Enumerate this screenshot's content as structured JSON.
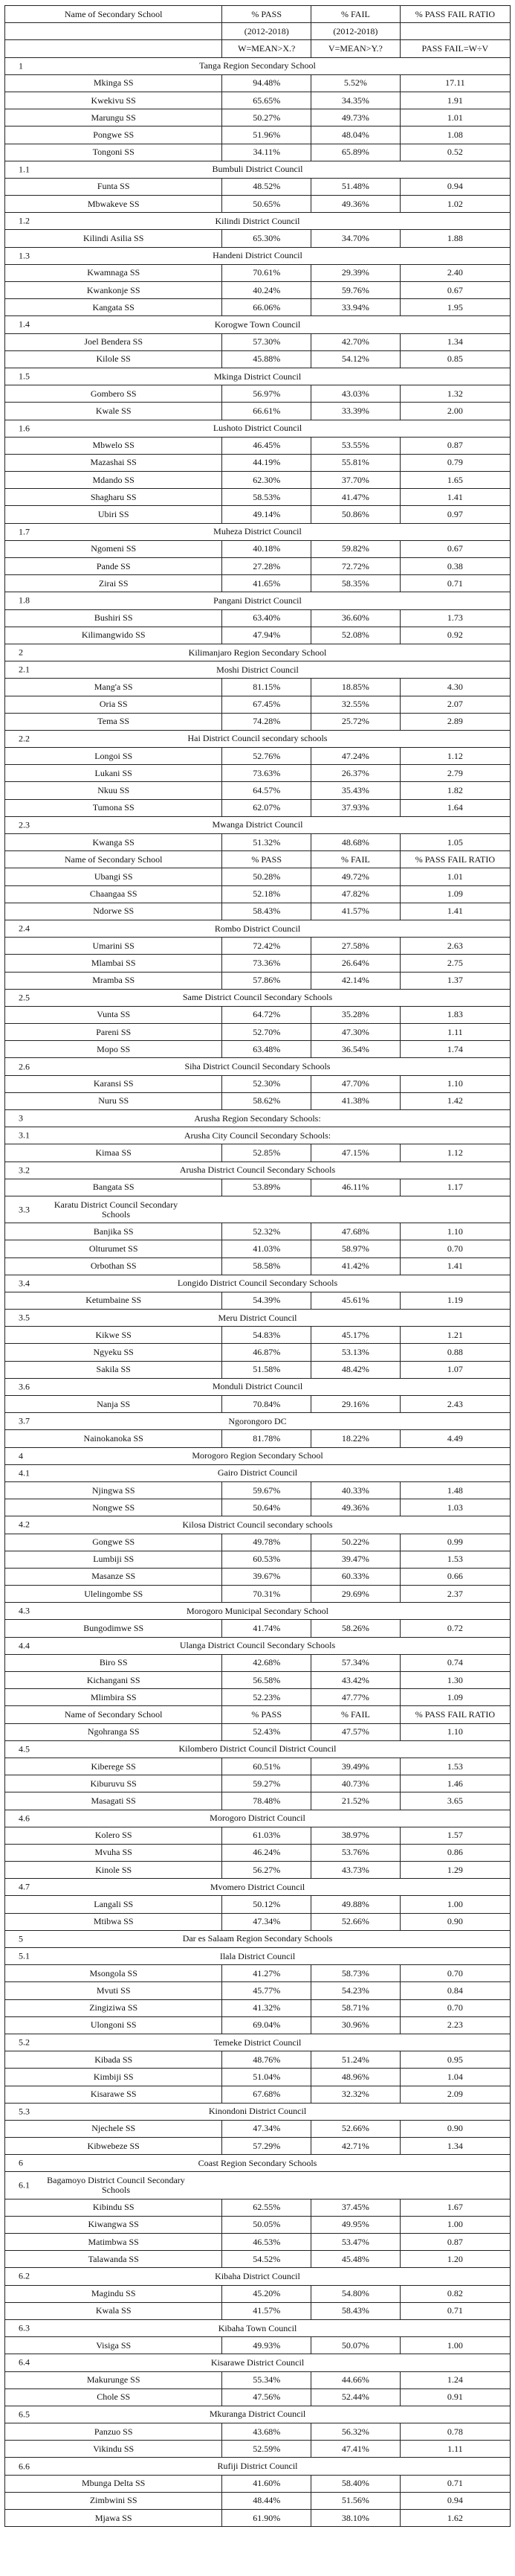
{
  "table": {
    "header": {
      "name": "Name of Secondary School",
      "pass": "% PASS",
      "fail": "% FAIL",
      "ratio": "% PASS FAIL RATIO",
      "pass_sub": "(2012-2018)",
      "fail_sub": "(2012-2018)",
      "pass_formula": "W=MEAN>X.?",
      "fail_formula": "V=MEAN>Y.?",
      "ratio_formula": "PASS FAIL=W÷V"
    },
    "rows": [
      {
        "t": "sec",
        "num": "1",
        "title": "Tanga Region Secondary School"
      },
      {
        "t": "row",
        "name": "Mkinga SS",
        "pass": "94.48%",
        "fail": "5.52%",
        "ratio": "17.11"
      },
      {
        "t": "row",
        "name": "Kwekivu SS",
        "pass": "65.65%",
        "fail": "34.35%",
        "ratio": "1.91"
      },
      {
        "t": "row",
        "name": "Marungu SS",
        "pass": "50.27%",
        "fail": "49.73%",
        "ratio": "1.01"
      },
      {
        "t": "row",
        "name": "Pongwe SS",
        "pass": "51.96%",
        "fail": "48.04%",
        "ratio": "1.08"
      },
      {
        "t": "row",
        "name": "Tongoni SS",
        "pass": "34.11%",
        "fail": "65.89%",
        "ratio": "0.52"
      },
      {
        "t": "sec",
        "num": "1.1",
        "title": "Bumbuli District Council"
      },
      {
        "t": "row",
        "name": "Funta SS",
        "pass": "48.52%",
        "fail": "51.48%",
        "ratio": "0.94"
      },
      {
        "t": "row",
        "name": "Mbwakeve SS",
        "pass": "50.65%",
        "fail": "49.36%",
        "ratio": "1.02"
      },
      {
        "t": "sec",
        "num": "1.2",
        "title": "Kilindi District Council"
      },
      {
        "t": "row",
        "name": "Kilindi Asilia SS",
        "pass": "65.30%",
        "fail": "34.70%",
        "ratio": "1.88"
      },
      {
        "t": "sec",
        "num": "1.3",
        "title": "Handeni District Council"
      },
      {
        "t": "row",
        "name": "Kwamnaga SS",
        "pass": "70.61%",
        "fail": "29.39%",
        "ratio": "2.40"
      },
      {
        "t": "row",
        "name": "Kwankonje SS",
        "pass": "40.24%",
        "fail": "59.76%",
        "ratio": "0.67"
      },
      {
        "t": "row",
        "name": "Kangata SS",
        "pass": "66.06%",
        "fail": "33.94%",
        "ratio": "1.95"
      },
      {
        "t": "sec",
        "num": "1.4",
        "title": "Korogwe Town Council"
      },
      {
        "t": "row",
        "name": "Joel Bendera SS",
        "pass": "57.30%",
        "fail": "42.70%",
        "ratio": "1.34"
      },
      {
        "t": "row",
        "name": "Kilole SS",
        "pass": "45.88%",
        "fail": "54.12%",
        "ratio": "0.85"
      },
      {
        "t": "sec",
        "num": "1.5",
        "title": "Mkinga District Council"
      },
      {
        "t": "row",
        "name": "Gombero SS",
        "pass": "56.97%",
        "fail": "43.03%",
        "ratio": "1.32"
      },
      {
        "t": "row",
        "name": "Kwale SS",
        "pass": "66.61%",
        "fail": "33.39%",
        "ratio": "2.00"
      },
      {
        "t": "sec",
        "num": "1.6",
        "title": "Lushoto District Council"
      },
      {
        "t": "row",
        "name": "Mbwelo SS",
        "pass": "46.45%",
        "fail": "53.55%",
        "ratio": "0.87"
      },
      {
        "t": "row",
        "name": "Mazashai SS",
        "pass": "44.19%",
        "fail": "55.81%",
        "ratio": "0.79"
      },
      {
        "t": "row",
        "name": "Mdando SS",
        "pass": "62.30%",
        "fail": "37.70%",
        "ratio": "1.65"
      },
      {
        "t": "row",
        "name": "Shagharu SS",
        "pass": "58.53%",
        "fail": "41.47%",
        "ratio": "1.41"
      },
      {
        "t": "row",
        "name": "Ubiri SS",
        "pass": "49.14%",
        "fail": "50.86%",
        "ratio": "0.97"
      },
      {
        "t": "sec",
        "num": "1.7",
        "title": "Muheza District Council"
      },
      {
        "t": "row",
        "name": "Ngomeni SS",
        "pass": "40.18%",
        "fail": "59.82%",
        "ratio": "0.67"
      },
      {
        "t": "row",
        "name": "Pande SS",
        "pass": "27.28%",
        "fail": "72.72%",
        "ratio": "0.38"
      },
      {
        "t": "row",
        "name": "Zirai SS",
        "pass": "41.65%",
        "fail": "58.35%",
        "ratio": "0.71"
      },
      {
        "t": "sec",
        "num": "1.8",
        "title": "Pangani District Council"
      },
      {
        "t": "row",
        "name": "Bushiri SS",
        "pass": "63.40%",
        "fail": "36.60%",
        "ratio": "1.73"
      },
      {
        "t": "row",
        "name": "Kilimangwido SS",
        "pass": "47.94%",
        "fail": "52.08%",
        "ratio": "0.92"
      },
      {
        "t": "sec",
        "num": "2",
        "title": "Kilimanjaro Region Secondary School"
      },
      {
        "t": "sec",
        "num": "2.1",
        "title": "Moshi District Council"
      },
      {
        "t": "row",
        "name": "Mang'a SS",
        "pass": "81.15%",
        "fail": "18.85%",
        "ratio": "4.30"
      },
      {
        "t": "row",
        "name": "Oria SS",
        "pass": "67.45%",
        "fail": "32.55%",
        "ratio": "2.07"
      },
      {
        "t": "row",
        "name": "Tema SS",
        "pass": "74.28%",
        "fail": "25.72%",
        "ratio": "2.89"
      },
      {
        "t": "sec",
        "num": "2.2",
        "title": "Hai District Council secondary schools"
      },
      {
        "t": "row",
        "name": "Longoi SS",
        "pass": "52.76%",
        "fail": "47.24%",
        "ratio": "1.12"
      },
      {
        "t": "row",
        "name": "Lukani SS",
        "pass": "73.63%",
        "fail": "26.37%",
        "ratio": "2.79"
      },
      {
        "t": "row",
        "name": "Nkuu SS",
        "pass": "64.57%",
        "fail": "35.43%",
        "ratio": "1.82"
      },
      {
        "t": "row",
        "name": "Tumona SS",
        "pass": "62.07%",
        "fail": "37.93%",
        "ratio": "1.64"
      },
      {
        "t": "sec",
        "num": "2.3",
        "title": "Mwanga District Council"
      },
      {
        "t": "row",
        "name": "Kwanga SS",
        "pass": "51.32%",
        "fail": "48.68%",
        "ratio": "1.05"
      },
      {
        "t": "hdr"
      },
      {
        "t": "row",
        "name": "Ubangi SS",
        "pass": "50.28%",
        "fail": "49.72%",
        "ratio": "1.01"
      },
      {
        "t": "row",
        "name": "Chaangaa SS",
        "pass": "52.18%",
        "fail": "47.82%",
        "ratio": "1.09"
      },
      {
        "t": "row",
        "name": "Ndorwe SS",
        "pass": "58.43%",
        "fail": "41.57%",
        "ratio": "1.41"
      },
      {
        "t": "sec",
        "num": "2.4",
        "title": "Rombo District Council"
      },
      {
        "t": "row",
        "name": "Umarini SS",
        "pass": "72.42%",
        "fail": "27.58%",
        "ratio": "2.63"
      },
      {
        "t": "row",
        "name": "Mlambai SS",
        "pass": "73.36%",
        "fail": "26.64%",
        "ratio": "2.75"
      },
      {
        "t": "row",
        "name": "Mramba SS",
        "pass": "57.86%",
        "fail": "42.14%",
        "ratio": "1.37"
      },
      {
        "t": "sec",
        "num": "2.5",
        "title": "Same District Council Secondary Schools"
      },
      {
        "t": "row",
        "name": "Vunta SS",
        "pass": "64.72%",
        "fail": "35.28%",
        "ratio": "1.83"
      },
      {
        "t": "row",
        "name": "Pareni SS",
        "pass": "52.70%",
        "fail": "47.30%",
        "ratio": "1.11"
      },
      {
        "t": "row",
        "name": "Mopo SS",
        "pass": "63.48%",
        "fail": "36.54%",
        "ratio": "1.74"
      },
      {
        "t": "sec",
        "num": "2.6",
        "title": "Siha District Council Secondary Schools"
      },
      {
        "t": "row",
        "name": "Karansi SS",
        "pass": "52.30%",
        "fail": "47.70%",
        "ratio": "1.10"
      },
      {
        "t": "row",
        "name": "Nuru SS",
        "pass": "58.62%",
        "fail": "41.38%",
        "ratio": "1.42"
      },
      {
        "t": "sec",
        "num": "3",
        "title": "Arusha Region Secondary Schools:"
      },
      {
        "t": "sec",
        "num": "3.1",
        "title": "Arusha City Council Secondary Schools:"
      },
      {
        "t": "row",
        "name": "Kimaa SS",
        "pass": "52.85%",
        "fail": "47.15%",
        "ratio": "1.12"
      },
      {
        "t": "sec",
        "num": "3.2",
        "title": "Arusha District Council Secondary Schools"
      },
      {
        "t": "row",
        "name": "Bangata SS",
        "pass": "53.89%",
        "fail": "46.11%",
        "ratio": "1.17"
      },
      {
        "t": "sec2",
        "num": "3.3",
        "title": "Karatu District Council Secondary Schools"
      },
      {
        "t": "row",
        "name": "Banjika SS",
        "pass": "52.32%",
        "fail": "47.68%",
        "ratio": "1.10"
      },
      {
        "t": "row",
        "name": "Olturumet SS",
        "pass": "41.03%",
        "fail": "58.97%",
        "ratio": "0.70"
      },
      {
        "t": "row",
        "name": "Orbothan SS",
        "pass": "58.58%",
        "fail": "41.42%",
        "ratio": "1.41"
      },
      {
        "t": "sec",
        "num": "3.4",
        "title": "Longido District Council Secondary Schools"
      },
      {
        "t": "row",
        "name": "Ketumbaine SS",
        "pass": "54.39%",
        "fail": "45.61%",
        "ratio": "1.19"
      },
      {
        "t": "sec",
        "num": "3.5",
        "title": "Meru District Council"
      },
      {
        "t": "row",
        "name": "Kikwe SS",
        "pass": "54.83%",
        "fail": "45.17%",
        "ratio": "1.21"
      },
      {
        "t": "row",
        "name": "Ngyeku SS",
        "pass": "46.87%",
        "fail": "53.13%",
        "ratio": "0.88"
      },
      {
        "t": "row",
        "name": "Sakila SS",
        "pass": "51.58%",
        "fail": "48.42%",
        "ratio": "1.07"
      },
      {
        "t": "sec",
        "num": "3.6",
        "title": "Monduli District Council"
      },
      {
        "t": "row",
        "name": "Nanja SS",
        "pass": "70.84%",
        "fail": "29.16%",
        "ratio": "2.43"
      },
      {
        "t": "sec",
        "num": "3.7",
        "title": "Ngorongoro DC"
      },
      {
        "t": "row",
        "name": "Nainokanoka SS",
        "pass": "81.78%",
        "fail": "18.22%",
        "ratio": "4.49"
      },
      {
        "t": "sec",
        "num": "4",
        "title": "Morogoro Region Secondary School"
      },
      {
        "t": "sec",
        "num": "4.1",
        "title": "Gairo District Council"
      },
      {
        "t": "row",
        "name": "Njingwa SS",
        "pass": "59.67%",
        "fail": "40.33%",
        "ratio": "1.48"
      },
      {
        "t": "row",
        "name": "Nongwe SS",
        "pass": "50.64%",
        "fail": "49.36%",
        "ratio": "1.03"
      },
      {
        "t": "sec",
        "num": "4.2",
        "title": "Kilosa District Council secondary schools"
      },
      {
        "t": "row",
        "name": "Gongwe SS",
        "pass": "49.78%",
        "fail": "50.22%",
        "ratio": "0.99"
      },
      {
        "t": "row",
        "name": "Lumbiji SS",
        "pass": "60.53%",
        "fail": "39.47%",
        "ratio": "1.53"
      },
      {
        "t": "row",
        "name": "Masanze SS",
        "pass": "39.67%",
        "fail": "60.33%",
        "ratio": "0.66"
      },
      {
        "t": "row",
        "name": "Ulelingombe SS",
        "pass": "70.31%",
        "fail": "29.69%",
        "ratio": "2.37"
      },
      {
        "t": "sec",
        "num": "4.3",
        "title": "Morogoro Municipal Secondary School"
      },
      {
        "t": "row",
        "name": "Bungodimwe SS",
        "pass": "41.74%",
        "fail": "58.26%",
        "ratio": "0.72"
      },
      {
        "t": "sec",
        "num": "4.4",
        "title": "Ulanga District Council Secondary Schools"
      },
      {
        "t": "row",
        "name": "Biro SS",
        "pass": "42.68%",
        "fail": "57.34%",
        "ratio": "0.74"
      },
      {
        "t": "row",
        "name": "Kichangani SS",
        "pass": "56.58%",
        "fail": "43.42%",
        "ratio": "1.30"
      },
      {
        "t": "row",
        "name": "Mlimbira SS",
        "pass": "52.23%",
        "fail": "47.77%",
        "ratio": "1.09"
      },
      {
        "t": "hdr"
      },
      {
        "t": "row",
        "name": "Ngohranga SS",
        "pass": "52.43%",
        "fail": "47.57%",
        "ratio": "1.10"
      },
      {
        "t": "sec",
        "num": "4.5",
        "title": "Kilombero District Council District Council"
      },
      {
        "t": "row",
        "name": "Kiberege SS",
        "pass": "60.51%",
        "fail": "39.49%",
        "ratio": "1.53"
      },
      {
        "t": "row",
        "name": "Kiburuvu SS",
        "pass": "59.27%",
        "fail": "40.73%",
        "ratio": "1.46"
      },
      {
        "t": "row",
        "name": "Masagati SS",
        "pass": "78.48%",
        "fail": "21.52%",
        "ratio": "3.65"
      },
      {
        "t": "sec",
        "num": "4.6",
        "title": "Morogoro District Council"
      },
      {
        "t": "row",
        "name": "Kolero SS",
        "pass": "61.03%",
        "fail": "38.97%",
        "ratio": "1.57"
      },
      {
        "t": "row",
        "name": "Mvuha SS",
        "pass": "46.24%",
        "fail": "53.76%",
        "ratio": "0.86"
      },
      {
        "t": "row",
        "name": "Kinole SS",
        "pass": "56.27%",
        "fail": "43.73%",
        "ratio": "1.29"
      },
      {
        "t": "sec",
        "num": "4.7",
        "title": "Mvomero District Council"
      },
      {
        "t": "row",
        "name": "Langali SS",
        "pass": "50.12%",
        "fail": "49.88%",
        "ratio": "1.00"
      },
      {
        "t": "row",
        "name": "Mtibwa SS",
        "pass": "47.34%",
        "fail": "52.66%",
        "ratio": "0.90"
      },
      {
        "t": "sec",
        "num": "5",
        "title": "Dar es Salaam Region Secondary Schools"
      },
      {
        "t": "sec",
        "num": "5.1",
        "title": "Ilala District Council"
      },
      {
        "t": "row",
        "name": "Msongola SS",
        "pass": "41.27%",
        "fail": "58.73%",
        "ratio": "0.70"
      },
      {
        "t": "row",
        "name": "Mvuti SS",
        "pass": "45.77%",
        "fail": "54.23%",
        "ratio": "0.84"
      },
      {
        "t": "row",
        "name": "Zingiziwa SS",
        "pass": "41.32%",
        "fail": "58.71%",
        "ratio": "0.70"
      },
      {
        "t": "row",
        "name": "Ulongoni SS",
        "pass": "69.04%",
        "fail": "30.96%",
        "ratio": "2.23"
      },
      {
        "t": "sec",
        "num": "5.2",
        "title": "Temeke District Council"
      },
      {
        "t": "row",
        "name": "Kibada SS",
        "pass": "48.76%",
        "fail": "51.24%",
        "ratio": "0.95"
      },
      {
        "t": "row",
        "name": "Kimbiji SS",
        "pass": "51.04%",
        "fail": "48.96%",
        "ratio": "1.04"
      },
      {
        "t": "row",
        "name": "Kisarawe SS",
        "pass": "67.68%",
        "fail": "32.32%",
        "ratio": "2.09"
      },
      {
        "t": "sec",
        "num": "5.3",
        "title": "Kinondoni District Council"
      },
      {
        "t": "row",
        "name": "Njechele SS",
        "pass": "47.34%",
        "fail": "52.66%",
        "ratio": "0.90"
      },
      {
        "t": "row",
        "name": "Kibwebeze SS",
        "pass": "57.29%",
        "fail": "42.71%",
        "ratio": "1.34"
      },
      {
        "t": "sec",
        "num": "6",
        "title": "Coast Region Secondary Schools"
      },
      {
        "t": "sec2",
        "num": "6.1",
        "title": "Bagamoyo District Council Secondary Schools"
      },
      {
        "t": "row",
        "name": "Kibindu SS",
        "pass": "62.55%",
        "fail": "37.45%",
        "ratio": "1.67"
      },
      {
        "t": "row",
        "name": "Kiwangwa SS",
        "pass": "50.05%",
        "fail": "49.95%",
        "ratio": "1.00"
      },
      {
        "t": "row",
        "name": "Matimbwa SS",
        "pass": "46.53%",
        "fail": "53.47%",
        "ratio": "0.87"
      },
      {
        "t": "row",
        "name": "Talawanda SS",
        "pass": "54.52%",
        "fail": "45.48%",
        "ratio": "1.20"
      },
      {
        "t": "sec",
        "num": "6.2",
        "title": "Kibaha District Council"
      },
      {
        "t": "row",
        "name": "Magindu SS",
        "pass": "45.20%",
        "fail": "54.80%",
        "ratio": "0.82"
      },
      {
        "t": "row",
        "name": "Kwala SS",
        "pass": "41.57%",
        "fail": "58.43%",
        "ratio": "0.71"
      },
      {
        "t": "sec",
        "num": "6.3",
        "title": "Kibaha Town Council"
      },
      {
        "t": "row",
        "name": "Visiga SS",
        "pass": "49.93%",
        "fail": "50.07%",
        "ratio": "1.00"
      },
      {
        "t": "sec",
        "num": "6.4",
        "title": "Kisarawe District Council"
      },
      {
        "t": "row",
        "name": "Makurunge SS",
        "pass": "55.34%",
        "fail": "44.66%",
        "ratio": "1.24"
      },
      {
        "t": "row",
        "name": "Chole SS",
        "pass": "47.56%",
        "fail": "52.44%",
        "ratio": "0.91"
      },
      {
        "t": "sec",
        "num": "6.5",
        "title": "Mkuranga District Council"
      },
      {
        "t": "row",
        "name": "Panzuo SS",
        "pass": "43.68%",
        "fail": "56.32%",
        "ratio": "0.78"
      },
      {
        "t": "row",
        "name": "Vikindu SS",
        "pass": "52.59%",
        "fail": "47.41%",
        "ratio": "1.11"
      },
      {
        "t": "sec",
        "num": "6.6",
        "title": "Rufiji District Council"
      },
      {
        "t": "row",
        "name": "Mbunga Delta SS",
        "pass": "41.60%",
        "fail": "58.40%",
        "ratio": "0.71"
      },
      {
        "t": "row",
        "name": "Zimbwini SS",
        "pass": "48.44%",
        "fail": "51.56%",
        "ratio": "0.94"
      },
      {
        "t": "row",
        "name": "Mjawa SS",
        "pass": "61.90%",
        "fail": "38.10%",
        "ratio": "1.62"
      }
    ]
  }
}
